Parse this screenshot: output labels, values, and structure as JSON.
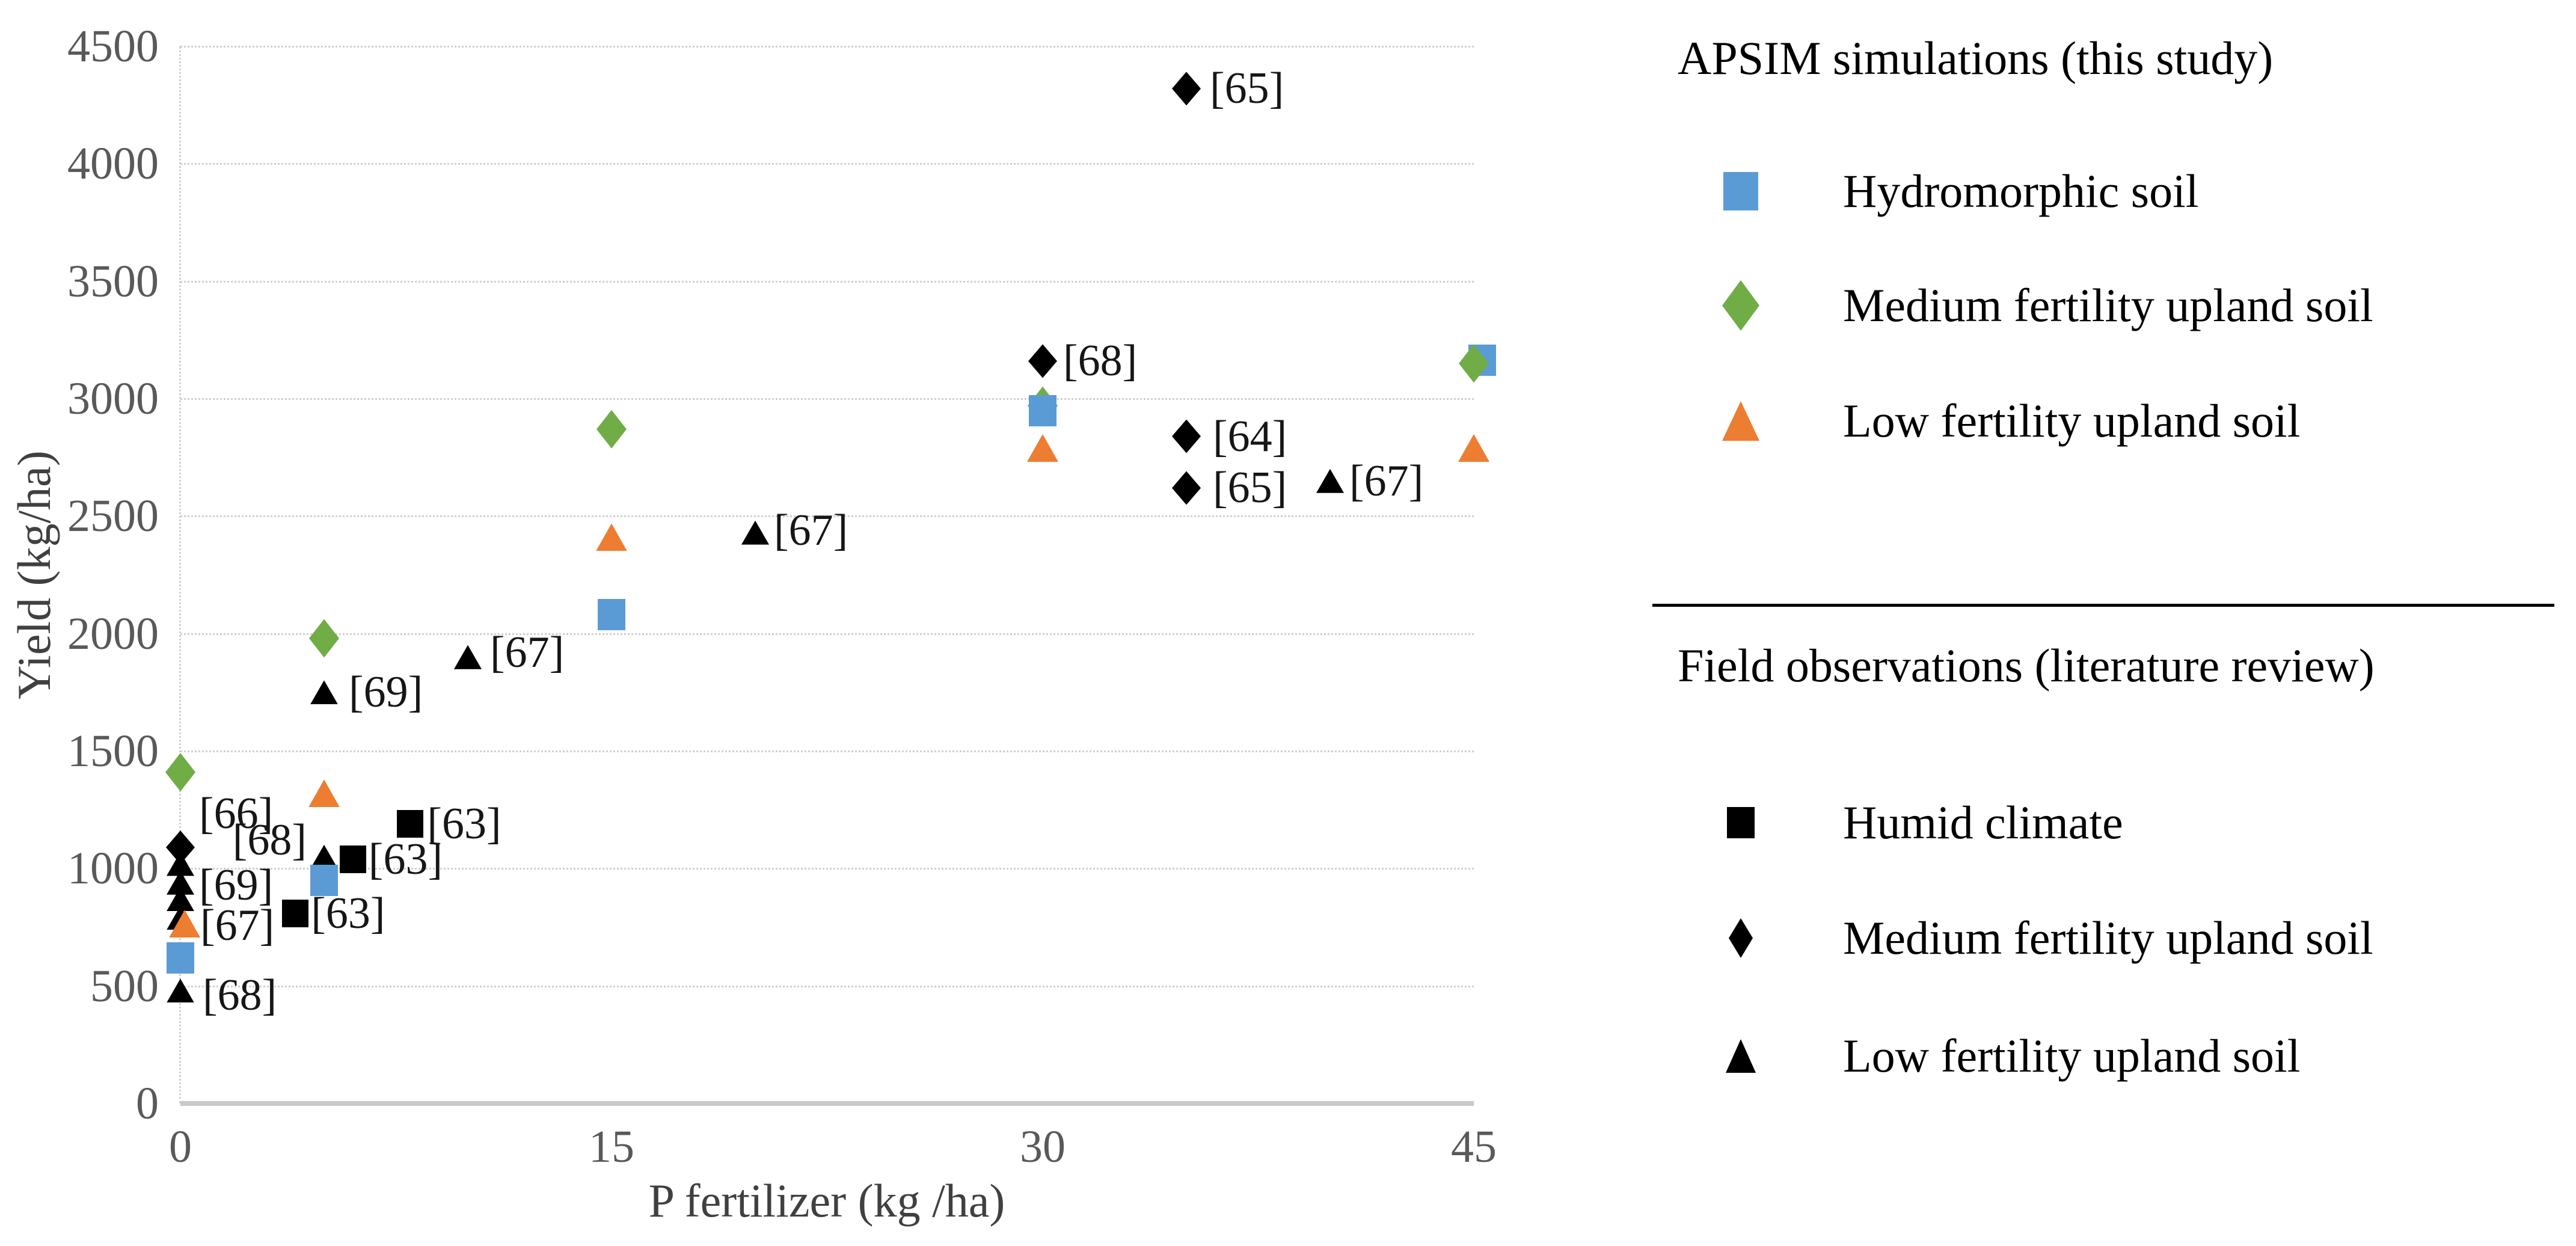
{
  "chart_data": {
    "type": "scatter",
    "title": "",
    "xlabel": "P fertilizer (kg /ha)",
    "ylabel": "Yield (kg/ha)",
    "xlim": [
      0,
      45
    ],
    "ylim": [
      0,
      4500
    ],
    "x_ticks": [
      0,
      15,
      30,
      45
    ],
    "y_ticks": [
      0,
      500,
      1000,
      1500,
      2000,
      2500,
      3000,
      3500,
      4000,
      4500
    ],
    "grid": "horizontal-dotted",
    "legend_position": "right-panel",
    "series": [
      {
        "name": "Low fertility upland soil (field observations)",
        "group": "Field observations (literature review)",
        "marker": "triangle",
        "color": "#000000",
        "mw": 46,
        "mh": 40,
        "points": [
          {
            "x": 0,
            "y": 1020
          },
          {
            "x": 0,
            "y": 940,
            "label": "[69]",
            "gap": 8,
            "dy": 4
          },
          {
            "x": 0,
            "y": 870
          },
          {
            "x": 0,
            "y": 790,
            "label": "[67]",
            "gap": 10,
            "dy": 13
          },
          {
            "x": 0,
            "y": 480,
            "label": "[68]",
            "gap": 14,
            "dy": 8
          },
          {
            "x": 5,
            "y": 1050,
            "label": "[68]",
            "side": "left",
            "gap": 6,
            "dy": -28
          },
          {
            "x": 5,
            "y": 1750,
            "label": "[69]",
            "gap": 18,
            "dy": 0
          },
          {
            "x": 10,
            "y": 1900,
            "label": "[67]",
            "gap": 14,
            "dy": -8
          },
          {
            "x": 20,
            "y": 2430,
            "label": "[67]",
            "gap": 8,
            "dy": -4
          },
          {
            "x": 40,
            "y": 2650,
            "label": "[67]",
            "gap": 9,
            "dy": 0
          }
        ]
      },
      {
        "name": "Medium fertility upland soil (field observations)",
        "group": "Field observations (literature review)",
        "marker": "diamond",
        "color": "#000000",
        "mw": 48,
        "mh": 56,
        "points": [
          {
            "x": 0,
            "y": 1090,
            "label": "[66]",
            "gap": 7,
            "dy": -56
          },
          {
            "x": 30,
            "y": 3160,
            "label": "[68]",
            "gap": 10,
            "dy": 0
          },
          {
            "x": 35,
            "y": 4320,
            "label": "[65]",
            "gap": 15,
            "dy": 0
          },
          {
            "x": 35,
            "y": 2840,
            "label": "[64]",
            "gap": 20,
            "dy": 0
          },
          {
            "x": 35,
            "y": 2620,
            "label": "[65]",
            "gap": 20,
            "dy": 0
          }
        ]
      },
      {
        "name": "Humid climate (field observations)",
        "group": "Field observations (literature review)",
        "marker": "square",
        "color": "#000000",
        "mw": 44,
        "mh": 46,
        "points": [
          {
            "x": 4,
            "y": 810,
            "label": "[63]",
            "gap": 4,
            "dy": 0
          },
          {
            "x": 6,
            "y": 1040,
            "label": "[63]",
            "gap": 4,
            "dy": 0
          },
          {
            "x": 8,
            "y": 1190,
            "label": "[63]",
            "gap": 6,
            "dy": 0
          }
        ]
      },
      {
        "name": "Medium fertility upland soil (APSIM)",
        "group": "APSIM simulations (this study)",
        "marker": "diamond",
        "color": "#70AD47",
        "mw": 50,
        "mh": 64,
        "points": [
          {
            "x": 0,
            "y": 1410
          },
          {
            "x": 5,
            "y": 1980
          },
          {
            "x": 15,
            "y": 2870
          },
          {
            "x": 30,
            "y": 2970
          },
          {
            "x": 45,
            "y": 3150,
            "z": 60
          }
        ]
      },
      {
        "name": "Hydromorphic soil (APSIM)",
        "group": "APSIM simulations (this study)",
        "marker": "square",
        "color": "#5B9BD5",
        "mw": 46,
        "mh": 52,
        "points": [
          {
            "x": 0,
            "y": 620
          },
          {
            "x": 5,
            "y": 950
          },
          {
            "x": 15,
            "y": 2080
          },
          {
            "x": 30,
            "y": 2950
          },
          {
            "x": 45.3,
            "y": 3165,
            "z": 45
          }
        ]
      },
      {
        "name": "Low fertility upland soil (APSIM)",
        "group": "APSIM simulations (this study)",
        "marker": "triangle",
        "color": "#ED7D31",
        "mw": 52,
        "mh": 46,
        "points": [
          {
            "x": 0.15,
            "y": 765
          },
          {
            "x": 5,
            "y": 1320
          },
          {
            "x": 15,
            "y": 2410
          },
          {
            "x": 30,
            "y": 2790
          },
          {
            "x": 45,
            "y": 2790
          }
        ]
      }
    ]
  },
  "legend": {
    "sections": [
      {
        "title": "APSIM simulations (this study)",
        "items": [
          {
            "label": "Hydromorphic soil",
            "marker": "square",
            "color": "#5B9BD5",
            "mw": 58,
            "mh": 64
          },
          {
            "label": "Medium fertility upland soil",
            "marker": "diamond",
            "color": "#70AD47",
            "mw": 62,
            "mh": 84
          },
          {
            "label": "Low fertility upland soil",
            "marker": "triangle",
            "color": "#ED7D31",
            "mw": 62,
            "mh": 66
          }
        ]
      },
      {
        "title": "Field observations (literature review)",
        "items": [
          {
            "label": "Humid climate",
            "marker": "square",
            "color": "#000000",
            "mw": 46,
            "mh": 52
          },
          {
            "label": "Medium fertility upland soil",
            "marker": "diamond",
            "color": "#000000",
            "mw": 40,
            "mh": 66
          },
          {
            "label": "Low fertility upland soil",
            "marker": "triangle",
            "color": "#000000",
            "mw": 50,
            "mh": 56
          }
        ]
      }
    ]
  }
}
